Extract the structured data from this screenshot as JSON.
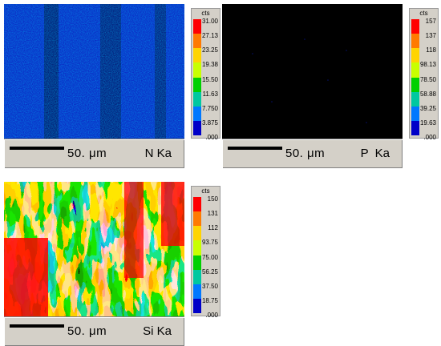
{
  "panels": [
    {
      "element": "N Ka",
      "scale": "50. μm",
      "legend": {
        "title": "cts",
        "ticks": [
          "31.00",
          "27.13",
          "23.25",
          "19.38",
          "15.50",
          "11.63",
          "7.750",
          "3.875",
          ".000"
        ]
      },
      "map_palette": "blue"
    },
    {
      "element": "P  Ka",
      "scale": "50. μm",
      "legend": {
        "title": "cts",
        "ticks": [
          "157",
          "137",
          "118",
          "98.13",
          "78.50",
          "58.88",
          "39.25",
          "19.63",
          ".000"
        ]
      },
      "map_palette": "black"
    },
    {
      "element": "Si Ka",
      "scale": "50. μm",
      "legend": {
        "title": "cts",
        "ticks": [
          "150",
          "131",
          "112",
          "93.75",
          "75.00",
          "56.25",
          "37.50",
          "18.75",
          ".000"
        ]
      },
      "map_palette": "rainbow"
    }
  ],
  "colors": {
    "legend_scale": [
      "#ff0000",
      "#ff7a00",
      "#ffd400",
      "#c8ff00",
      "#00d000",
      "#00c8a0",
      "#0078ff",
      "#0000c8"
    ],
    "footer_bg": "#d4d0c8"
  }
}
